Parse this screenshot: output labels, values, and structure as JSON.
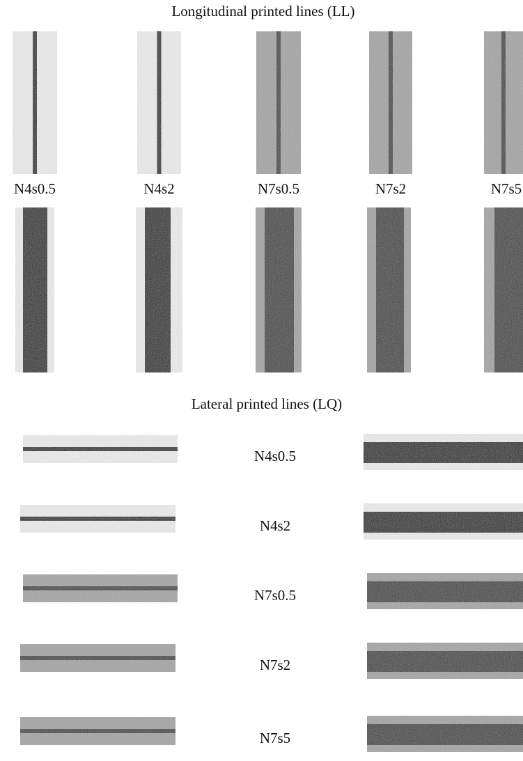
{
  "ll": {
    "title": "Longitudinal printed lines (LL)",
    "labels": [
      "N4s0.5",
      "N4s2",
      "N7s0.5",
      "N7s2",
      "N7s5"
    ]
  },
  "lq": {
    "title": "Lateral printed lines (LQ)",
    "labels": [
      "N4s0.5",
      "N4s2",
      "N7s0.5",
      "N7s2",
      "N7s5"
    ]
  }
}
